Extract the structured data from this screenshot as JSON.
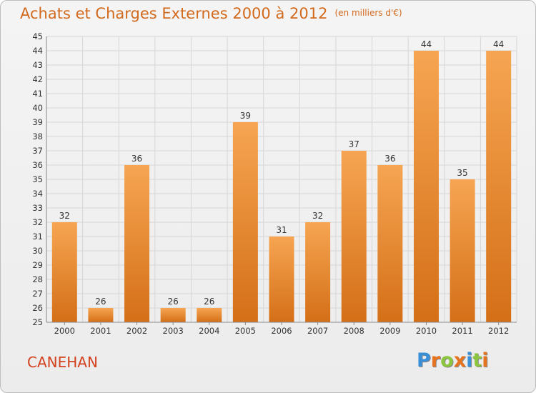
{
  "header": {
    "title": "Achats et Charges Externes 2000 à 2012",
    "unit": "(en milliers d'€)"
  },
  "footer": {
    "commune": "CANEHAN",
    "logo_letters": [
      "P",
      "r",
      "o",
      "x",
      "i",
      "t",
      "i"
    ]
  },
  "colors": {
    "bar_top": "#f6a552",
    "bar_bottom": "#d46f17",
    "title": "#d26a1e",
    "commune": "#d2421e",
    "logo": [
      "#3a8fd9",
      "#e8731f",
      "#8cc63f",
      "#e8731f",
      "#3a8fd9",
      "#8cc63f",
      "#e8731f"
    ]
  },
  "chart_data": {
    "type": "bar",
    "title": "Achats et Charges Externes 2000 à 2012",
    "subtitle": "(en milliers d'€)",
    "categories": [
      "2000",
      "2001",
      "2002",
      "2003",
      "2004",
      "2005",
      "2006",
      "2007",
      "2008",
      "2009",
      "2010",
      "2011",
      "2012"
    ],
    "values": [
      32,
      26,
      36,
      26,
      26,
      39,
      31,
      32,
      37,
      36,
      44,
      35,
      44
    ],
    "ylim": [
      25,
      45
    ],
    "ytick_step": 1,
    "grid": true,
    "legend": "none"
  }
}
